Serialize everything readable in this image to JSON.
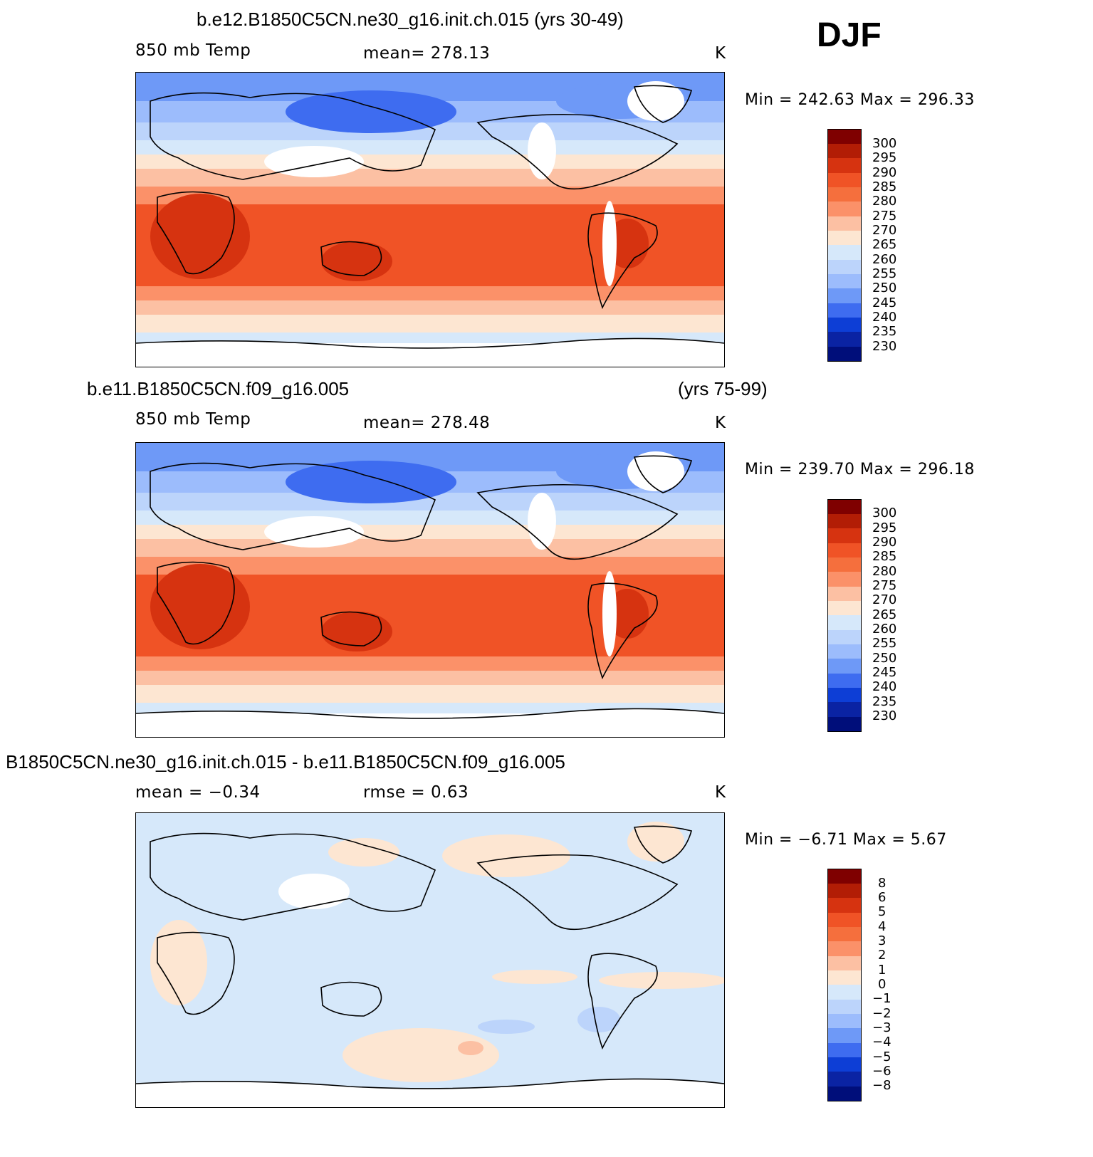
{
  "season": "DJF",
  "panels": [
    {
      "title_left": "b.e12.B1850C5CN.ne30_g16.init.ch.015 (yrs 30-49)",
      "title_right": "",
      "variable": "850 mb Temp",
      "stat": "mean=  278.13",
      "stat2": "",
      "units": "K",
      "minmax": "Min  =  242.63  Max  =  296.33",
      "levels": [
        "300",
        "295",
        "290",
        "285",
        "280",
        "275",
        "270",
        "265",
        "260",
        "255",
        "250",
        "245",
        "240",
        "235",
        "230"
      ]
    },
    {
      "title_left": "b.e11.B1850C5CN.f09_g16.005",
      "title_right": "(yrs 75-99)",
      "variable": "850 mb Temp",
      "stat": "mean=  278.48",
      "stat2": "",
      "units": "K",
      "minmax": "Min  =  239.70  Max  =  296.18",
      "levels": [
        "300",
        "295",
        "290",
        "285",
        "280",
        "275",
        "270",
        "265",
        "260",
        "255",
        "250",
        "245",
        "240",
        "235",
        "230"
      ]
    },
    {
      "title_left": "B1850C5CN.ne30_g16.init.ch.015 - b.e11.B1850C5CN.f09_g16.005",
      "title_right": "",
      "variable": "mean =    −0.34",
      "stat": "rmse =     0.63",
      "stat2": "",
      "units": "K",
      "minmax": "Min  =    −6.71  Max  =      5.67",
      "levels": [
        "8",
        "6",
        "5",
        "4",
        "3",
        "2",
        "1",
        "0",
        "−1",
        "−2",
        "−3",
        "−4",
        "−5",
        "−6",
        "−8"
      ]
    }
  ],
  "colors": [
    "#7f0000",
    "#b21d05",
    "#d63310",
    "#f05326",
    "#f56f3d",
    "#fb9169",
    "#fcc0a3",
    "#fde6d2",
    "#d6e8fa",
    "#bcd4fb",
    "#9cbcfc",
    "#6e99f7",
    "#3e6cf0",
    "#0d3ed6",
    "#0a23a3",
    "#000e7a"
  ]
}
